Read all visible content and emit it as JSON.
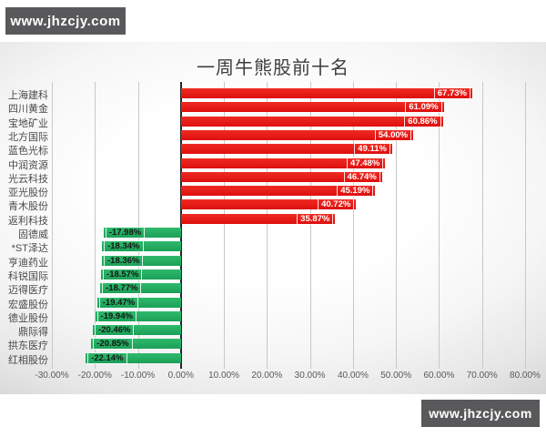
{
  "watermarks": {
    "top_left": "www.jhzcjy.com",
    "bottom_right": "www.jhzcjy.com"
  },
  "chart_data": {
    "type": "bar",
    "orientation": "horizontal",
    "title": "一周牛熊股前十名",
    "xlabel": "",
    "ylabel": "",
    "xlim": [
      -30,
      80
    ],
    "grid": true,
    "legend": "none",
    "colors": {
      "gain": "#e11312",
      "loss": "#21a95f",
      "zero_line": "#262626",
      "gridline": "#c8c8c8",
      "value_label_gain": "#ffffff",
      "value_label_loss": "#141414",
      "watermark_bg": "#59595b"
    },
    "x_ticks": [
      {
        "value": -30,
        "label": "-30.00%"
      },
      {
        "value": -20,
        "label": "-20.00%"
      },
      {
        "value": -10,
        "label": "-10.00%"
      },
      {
        "value": 0,
        "label": "0.00%"
      },
      {
        "value": 10,
        "label": "10.00%"
      },
      {
        "value": 20,
        "label": "20.00%"
      },
      {
        "value": 30,
        "label": "30.00%"
      },
      {
        "value": 40,
        "label": "40.00%"
      },
      {
        "value": 50,
        "label": "50.00%"
      },
      {
        "value": 60,
        "label": "60.00%"
      },
      {
        "value": 70,
        "label": "70.00%"
      },
      {
        "value": 80,
        "label": "80.00%"
      }
    ],
    "bars": [
      {
        "name": "上海建科",
        "value": 67.73,
        "label": "67.73%"
      },
      {
        "name": "四川黄金",
        "value": 61.09,
        "label": "61.09%"
      },
      {
        "name": "宝地矿业",
        "value": 60.86,
        "label": "60.86%"
      },
      {
        "name": "北方国际",
        "value": 54.0,
        "label": "54.00%"
      },
      {
        "name": "蓝色光标",
        "value": 49.11,
        "label": "49.11%"
      },
      {
        "name": "中润资源",
        "value": 47.48,
        "label": "47.48%"
      },
      {
        "name": "光云科技",
        "value": 46.74,
        "label": "46.74%"
      },
      {
        "name": "亚光股份",
        "value": 45.19,
        "label": "45.19%"
      },
      {
        "name": "青木股份",
        "value": 40.72,
        "label": "40.72%"
      },
      {
        "name": "返利科技",
        "value": 35.87,
        "label": "35.87%"
      },
      {
        "name": "固德威",
        "value": -17.98,
        "label": "-17.98%"
      },
      {
        "name": "*ST泽达",
        "value": -18.34,
        "label": "-18.34%"
      },
      {
        "name": "亨迪药业",
        "value": -18.36,
        "label": "-18.36%"
      },
      {
        "name": "科锐国际",
        "value": -18.57,
        "label": "-18.57%"
      },
      {
        "name": "迈得医疗",
        "value": -18.77,
        "label": "-18.77%"
      },
      {
        "name": "宏盛股份",
        "value": -19.47,
        "label": "-19.47%"
      },
      {
        "name": "德业股份",
        "value": -19.94,
        "label": "-19.94%"
      },
      {
        "name": "鼎际得",
        "value": -20.46,
        "label": "-20.46%"
      },
      {
        "name": "拱东医疗",
        "value": -20.85,
        "label": "-20.85%"
      },
      {
        "name": "红相股份",
        "value": -22.14,
        "label": "-22.14%"
      }
    ]
  }
}
